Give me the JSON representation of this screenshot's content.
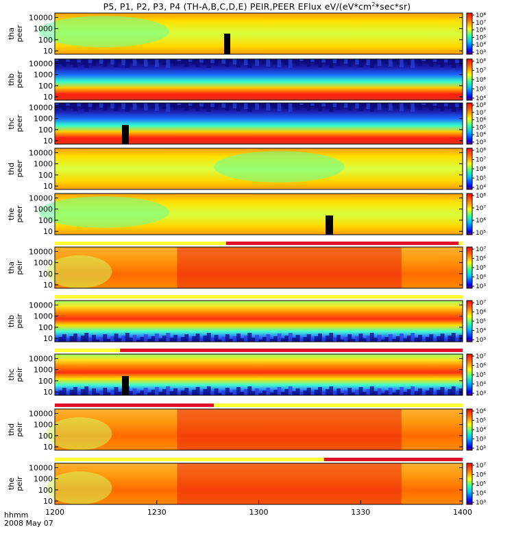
{
  "title": {
    "main": "P5, P1, P2, P3, P4 (TH-A,B,C,D,E) PEIR,PEER EFlux eV/(eV*cm",
    "sup": "2",
    "tail": "*sec*sr)"
  },
  "footer": {
    "hhmm": "hhmm",
    "date": "2008 May 07"
  },
  "colors": {
    "jet": [
      "#00007f",
      "#0000ff",
      "#007fff",
      "#00ffff",
      "#7fff7f",
      "#ffff00",
      "#ff7f00",
      "#ff0000",
      "#7f0000"
    ],
    "qualityBarGood": "#ffff33",
    "qualityBarBad": "#e0102a"
  },
  "chart_data": {
    "type": "heatmap",
    "x": {
      "ticks": [
        "1200",
        "1230",
        "1300",
        "1330",
        "1400"
      ],
      "range": [
        "12:00",
        "14:00"
      ]
    },
    "y": {
      "scale": "log",
      "ticks": [
        "10",
        "100",
        "1000",
        "10000"
      ],
      "range": [
        5,
        25000
      ]
    },
    "panels": [
      {
        "id": "tha-peer",
        "label1": "tha",
        "label2": "peer",
        "pattern": "smooth-green",
        "cbticks": [
          "10⁸",
          "10⁷",
          "10⁶",
          "10⁵",
          "10⁴",
          "10³"
        ]
      },
      {
        "id": "thb-peer",
        "label1": "thb",
        "label2": "peer",
        "pattern": "noisy-band",
        "cbticks": [
          "10⁸",
          "10⁷",
          "10⁶",
          "10⁵",
          "10⁴"
        ]
      },
      {
        "id": "thc-peer",
        "label1": "thc",
        "label2": "peer",
        "pattern": "noisy-band",
        "cbticks": [
          "10⁸",
          "10⁷",
          "10⁶",
          "10⁵",
          "10⁴",
          "10³"
        ]
      },
      {
        "id": "thd-peer",
        "label1": "thd",
        "label2": "peer",
        "pattern": "smooth-green",
        "cbticks": [
          "10⁸",
          "10⁷",
          "10⁶",
          "10⁵",
          "10⁴"
        ]
      },
      {
        "id": "the-peer",
        "label1": "the",
        "label2": "peer",
        "pattern": "smooth-green",
        "cbticks": [
          "10⁸",
          "10⁷",
          "10⁶",
          "10⁵"
        ]
      },
      {
        "id": "tha-peir",
        "label1": "tha",
        "label2": "peir",
        "pattern": "smooth-red",
        "cbticks": [
          "10⁷",
          "10⁶",
          "10⁵",
          "10⁴",
          "10³"
        ]
      },
      {
        "id": "thb-peir",
        "label1": "thb",
        "label2": "peir",
        "pattern": "ion-band",
        "cbticks": [
          "10⁷",
          "10⁶",
          "10⁵",
          "10⁴",
          "10³"
        ]
      },
      {
        "id": "thc-peir",
        "label1": "thc",
        "label2": "peir",
        "pattern": "ion-band",
        "cbticks": [
          "10⁷",
          "10⁶",
          "10⁵",
          "10⁴",
          "10³"
        ]
      },
      {
        "id": "thd-peir",
        "label1": "thd",
        "label2": "peir",
        "pattern": "smooth-red",
        "cbticks": [
          "10⁶",
          "10⁵",
          "10⁴",
          "10³",
          "10²"
        ]
      },
      {
        "id": "the-peir",
        "label1": "the",
        "label2": "peir",
        "pattern": "smooth-red",
        "cbticks": [
          "10⁷",
          "10⁶",
          "10⁵",
          "10⁴",
          "10³"
        ]
      }
    ]
  }
}
